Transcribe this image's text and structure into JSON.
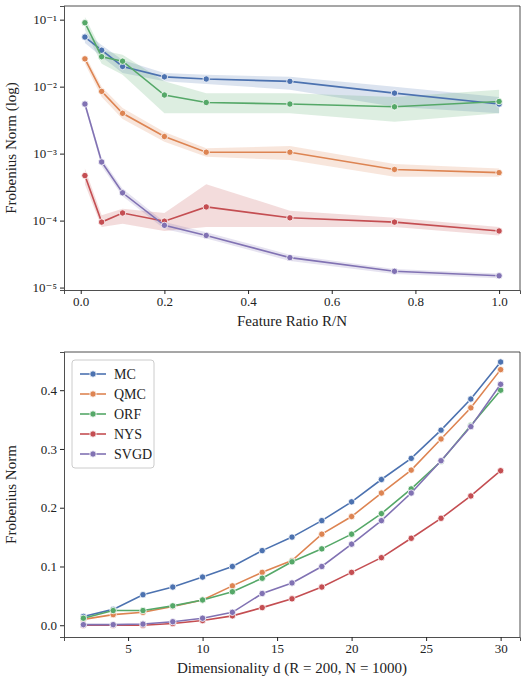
{
  "chart_data": [
    {
      "type": "line",
      "log": "y",
      "grid": false,
      "x_label": "Feature Ratio R/N",
      "y_label": "Frobenius Norm (log)",
      "x": [
        0.01,
        0.05,
        0.1,
        0.2,
        0.3,
        0.5,
        0.75,
        1.0
      ],
      "xlim": [
        -0.04,
        1.05
      ],
      "xticks": [
        {
          "value": 0,
          "label": "0.0"
        },
        {
          "value": 0.2,
          "label": "0.2"
        },
        {
          "value": 0.4,
          "label": "0.4"
        },
        {
          "value": 0.6,
          "label": "0.6"
        },
        {
          "value": 0.8,
          "label": "0.8"
        },
        {
          "value": 1,
          "label": "1.0"
        }
      ],
      "ylim": [
        9.2e-06,
        0.16
      ],
      "yticks": [
        {
          "value": 1e-05,
          "label": "10⁻⁵"
        },
        {
          "value": 0.0001,
          "label": "10⁻⁴"
        },
        {
          "value": 0.001,
          "label": "10⁻³"
        },
        {
          "value": 0.01,
          "label": "10⁻²"
        },
        {
          "value": 0.1,
          "label": "10⁻¹"
        }
      ],
      "marker": "circle",
      "series": [
        {
          "color": "#4c72b0",
          "values": [
            0.055,
            0.035,
            0.02,
            0.014,
            0.013,
            0.012,
            0.008,
            0.0055
          ],
          "lower": [
            0.045,
            0.028,
            0.016,
            0.012,
            0.011,
            0.009,
            0.005,
            0.004
          ],
          "upper": [
            0.065,
            0.042,
            0.025,
            0.016,
            0.015,
            0.014,
            0.01,
            0.007
          ]
        },
        {
          "color": "#dd8452",
          "values": [
            0.026,
            0.0085,
            0.004,
            0.0018,
            0.00105,
            0.00105,
            0.00058,
            0.00052
          ],
          "lower": [
            0.022,
            0.007,
            0.0033,
            0.0015,
            0.0009,
            0.0008,
            0.00045,
            0.00045
          ],
          "upper": [
            0.03,
            0.01,
            0.0048,
            0.0021,
            0.0012,
            0.0013,
            0.0007,
            0.0006
          ]
        },
        {
          "color": "#55a868",
          "values": [
            0.09,
            0.028,
            0.024,
            0.0075,
            0.0058,
            0.0055,
            0.005,
            0.006
          ],
          "lower": [
            0.07,
            0.022,
            0.015,
            0.004,
            0.004,
            0.004,
            0.003,
            0.004
          ],
          "upper": [
            0.11,
            0.035,
            0.03,
            0.012,
            0.008,
            0.008,
            0.007,
            0.009
          ]
        },
        {
          "color": "#c44e52",
          "values": [
            0.00047,
            9.5e-05,
            0.00013,
            9.8e-05,
            0.00016,
            0.00011,
            9.5e-05,
            7e-05
          ],
          "lower": [
            0.00035,
            8e-05,
            9e-05,
            7e-05,
            8e-05,
            8e-05,
            8e-05,
            6e-05
          ],
          "upper": [
            0.0006,
            0.00012,
            0.00015,
            0.00013,
            0.00035,
            0.00014,
            0.00011,
            8e-05
          ]
        },
        {
          "color": "#8172b3",
          "values": [
            0.0055,
            0.00075,
            0.00026,
            8.5e-05,
            6e-05,
            2.8e-05,
            1.75e-05,
            1.5e-05
          ],
          "lower": [
            0.005,
            0.00065,
            0.00023,
            7.5e-05,
            5.4e-05,
            2.5e-05,
            1.6e-05,
            1.38e-05
          ],
          "upper": [
            0.006,
            0.00085,
            0.0003,
            9.5e-05,
            6.7e-05,
            3.1e-05,
            1.9e-05,
            1.62e-05
          ]
        }
      ]
    },
    {
      "type": "line",
      "grid": false,
      "legend": "upper left",
      "x_label": "Dimensionality d (R = 200, N = 1000)",
      "y_label": "Frobenius Norm",
      "x": [
        2,
        4,
        6,
        8,
        10,
        12,
        14,
        16,
        18,
        20,
        22,
        24,
        26,
        28,
        30
      ],
      "xlim": [
        0.7,
        31.3
      ],
      "xticks": [
        5,
        10,
        15,
        20,
        25,
        30
      ],
      "ylim": [
        -0.02,
        0.465
      ],
      "yticks": [
        {
          "value": 0,
          "label": "0.0"
        },
        {
          "value": 0.1,
          "label": "0.1"
        },
        {
          "value": 0.2,
          "label": "0.2"
        },
        {
          "value": 0.3,
          "label": "0.3"
        },
        {
          "value": 0.4,
          "label": "0.4"
        }
      ],
      "marker": "circle",
      "series": [
        {
          "name": "MC",
          "color": "#4c72b0",
          "values": [
            0.015,
            0.027,
            0.052,
            0.065,
            0.082,
            0.1,
            0.127,
            0.15,
            0.178,
            0.21,
            0.248,
            0.284,
            0.332,
            0.385,
            0.448
          ]
        },
        {
          "name": "QMC",
          "color": "#dd8452",
          "values": [
            0.01,
            0.018,
            0.022,
            0.032,
            0.043,
            0.067,
            0.09,
            0.11,
            0.155,
            0.185,
            0.225,
            0.264,
            0.317,
            0.37,
            0.435
          ]
        },
        {
          "name": "ORF",
          "color": "#55a868",
          "values": [
            0.012,
            0.025,
            0.025,
            0.033,
            0.043,
            0.057,
            0.08,
            0.108,
            0.13,
            0.155,
            0.19,
            0.232,
            0.279,
            0.34,
            0.4
          ]
        },
        {
          "name": "NYS",
          "color": "#c44e52",
          "values": [
            0.0,
            0.0,
            0.0,
            0.003,
            0.008,
            0.016,
            0.03,
            0.045,
            0.065,
            0.09,
            0.115,
            0.148,
            0.182,
            0.22,
            0.263
          ]
        },
        {
          "name": "SVGD",
          "color": "#8172b3",
          "values": [
            0.001,
            0.001,
            0.002,
            0.006,
            0.012,
            0.022,
            0.054,
            0.072,
            0.1,
            0.138,
            0.178,
            0.225,
            0.28,
            0.338,
            0.41
          ]
        }
      ]
    }
  ]
}
